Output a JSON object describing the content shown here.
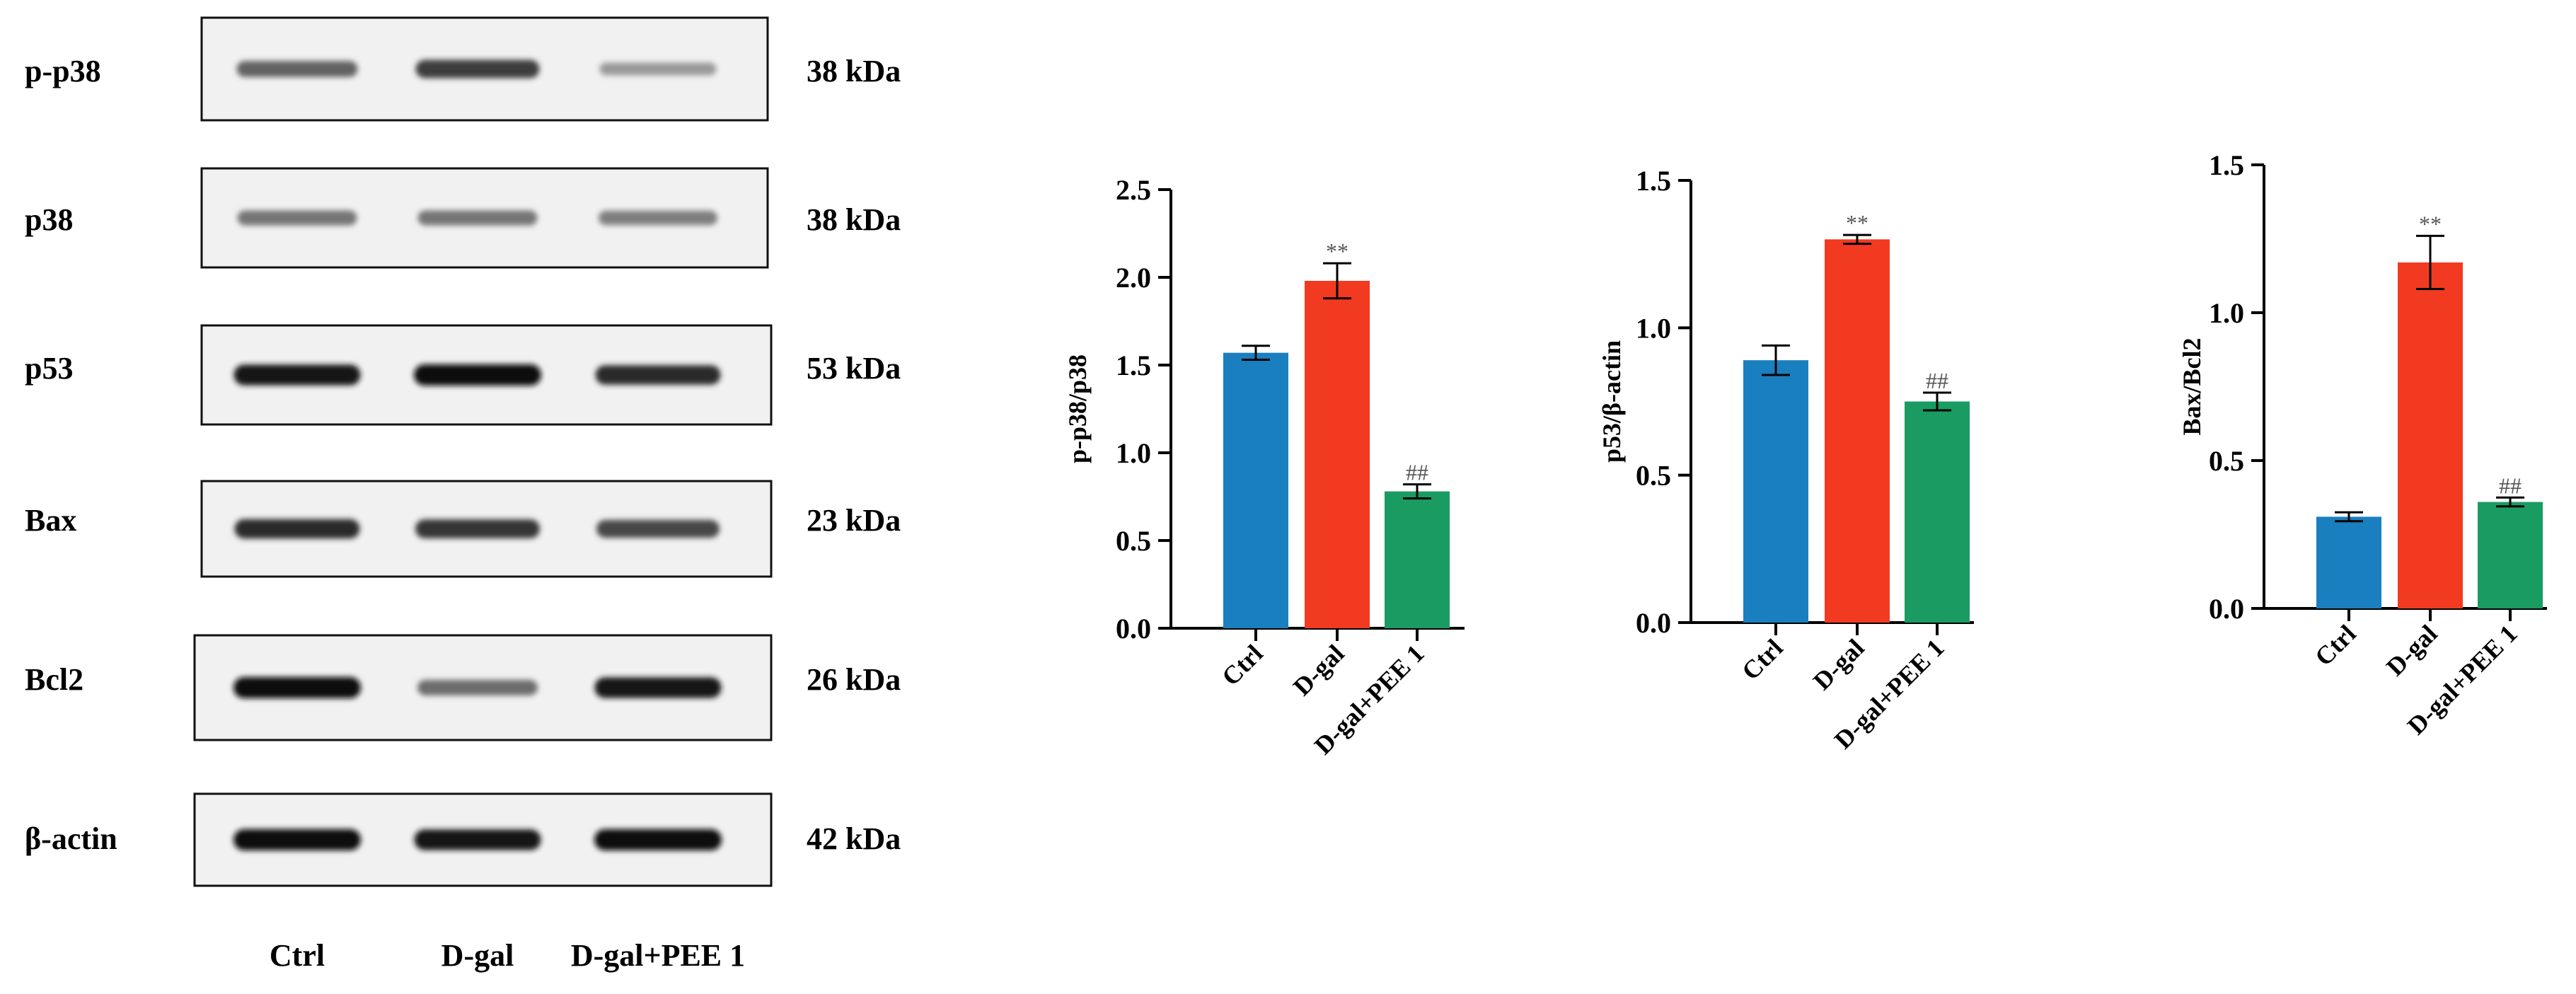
{
  "western_blot": {
    "rows": [
      {
        "protein": "p-p38",
        "kda": "38 kDa"
      },
      {
        "protein": "p38",
        "kda": "38 kDa"
      },
      {
        "protein": "p53",
        "kda": "53 kDa"
      },
      {
        "protein": "Bax",
        "kda": "23 kDa"
      },
      {
        "protein": "Bcl2",
        "kda": "26 kDa"
      },
      {
        "protein": "β-actin",
        "kda": "42 kDa"
      }
    ],
    "lanes": [
      "Ctrl",
      "D-gal",
      "D-gal+PEE 1"
    ],
    "band_intensity": [
      [
        0.55,
        0.75,
        0.25
      ],
      [
        0.45,
        0.45,
        0.4
      ],
      [
        0.95,
        1.0,
        0.85
      ],
      [
        0.85,
        0.8,
        0.7
      ],
      [
        1.0,
        0.5,
        0.95
      ],
      [
        1.0,
        0.95,
        1.0
      ]
    ]
  },
  "colors": {
    "Ctrl": "#1a7fbf",
    "D-gal": "#f23a21",
    "D-gal+PEE 1": "#1a9b62"
  },
  "chart_data": [
    {
      "type": "bar",
      "categories": [
        "Ctrl",
        "D-gal",
        "D-gal+PEE 1"
      ],
      "values": [
        1.57,
        1.98,
        0.78
      ],
      "errors": [
        0.04,
        0.1,
        0.04
      ],
      "annotations": [
        "",
        "**",
        "##"
      ],
      "ylabel": "p-p38/p38",
      "ylim": [
        0,
        2.5
      ],
      "yticks": [
        "0.0",
        "0.5",
        "1.0",
        "1.5",
        "2.0",
        "2.5"
      ]
    },
    {
      "type": "bar",
      "categories": [
        "Ctrl",
        "D-gal",
        "D-gal+PEE 1"
      ],
      "values": [
        0.89,
        1.3,
        0.75
      ],
      "errors": [
        0.05,
        0.015,
        0.03
      ],
      "annotations": [
        "",
        "**",
        "##"
      ],
      "ylabel": "p53/β-actin",
      "ylim": [
        0,
        1.5
      ],
      "yticks": [
        "0.0",
        "0.5",
        "1.0",
        "1.5"
      ]
    },
    {
      "type": "bar",
      "categories": [
        "Ctrl",
        "D-gal",
        "D-gal+PEE 1"
      ],
      "values": [
        0.31,
        1.17,
        0.36
      ],
      "errors": [
        0.015,
        0.09,
        0.015
      ],
      "annotations": [
        "",
        "**",
        "##"
      ],
      "ylabel": "Bax/Bcl2",
      "ylim": [
        0,
        1.5
      ],
      "yticks": [
        "0.0",
        "0.5",
        "1.0",
        "1.5"
      ]
    }
  ]
}
